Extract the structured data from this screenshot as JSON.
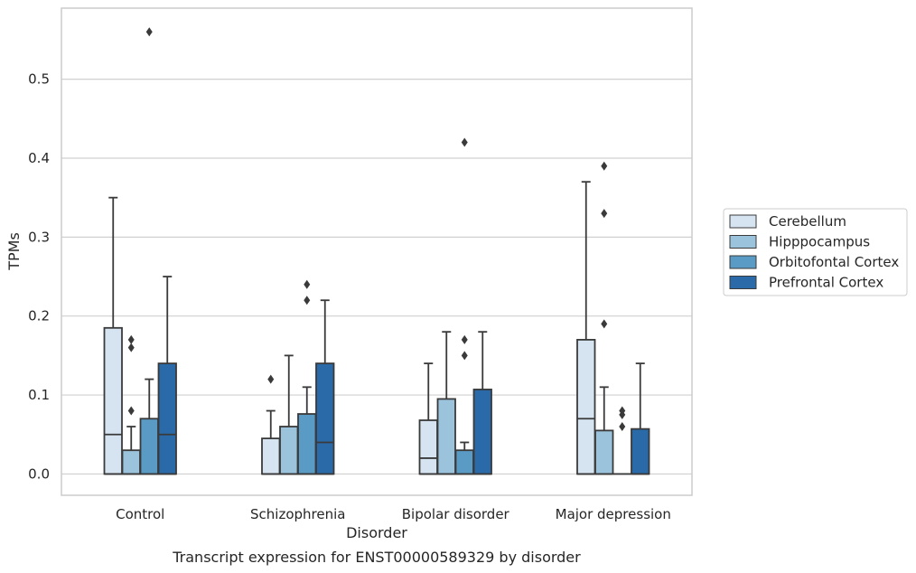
{
  "chart_data": {
    "type": "box",
    "title": "",
    "caption": "Transcript expression for ENST00000589329 by disorder",
    "xlabel": "Disorder",
    "ylabel": "TPMs",
    "ylim": [
      -0.027,
      0.59
    ],
    "yticks": [
      0.0,
      0.1,
      0.2,
      0.3,
      0.4,
      0.5
    ],
    "ytick_labels": [
      "0.0",
      "0.1",
      "0.2",
      "0.3",
      "0.4",
      "0.5"
    ],
    "grid": "horizontal",
    "legend_position": "right",
    "categories": [
      "Control",
      "Schizophrenia",
      "Bipolar disorder",
      "Major depression"
    ],
    "series": [
      {
        "name": "Cerebellum",
        "color": "#d6e4f2",
        "boxes": [
          {
            "min": 0.0,
            "q1": 0.0,
            "median": 0.05,
            "q3": 0.185,
            "max": 0.35,
            "outliers": []
          },
          {
            "min": 0.0,
            "q1": 0.0,
            "median": 0.0,
            "q3": 0.045,
            "max": 0.08,
            "outliers": [
              0.12
            ]
          },
          {
            "min": 0.0,
            "q1": 0.0,
            "median": 0.02,
            "q3": 0.068,
            "max": 0.14,
            "outliers": []
          },
          {
            "min": 0.0,
            "q1": 0.0,
            "median": 0.07,
            "q3": 0.17,
            "max": 0.37,
            "outliers": []
          }
        ]
      },
      {
        "name": "Hipppocampus",
        "color": "#9cc3dc",
        "boxes": [
          {
            "min": 0.0,
            "q1": 0.0,
            "median": 0.0,
            "q3": 0.03,
            "max": 0.06,
            "outliers": [
              0.08,
              0.16,
              0.17
            ]
          },
          {
            "min": 0.0,
            "q1": 0.0,
            "median": 0.0,
            "q3": 0.06,
            "max": 0.15,
            "outliers": []
          },
          {
            "min": 0.0,
            "q1": 0.0,
            "median": 0.0,
            "q3": 0.095,
            "max": 0.18,
            "outliers": []
          },
          {
            "min": 0.0,
            "q1": 0.0,
            "median": 0.0,
            "q3": 0.055,
            "max": 0.11,
            "outliers": [
              0.19,
              0.33,
              0.39
            ]
          }
        ]
      },
      {
        "name": "Orbitofontal Cortex",
        "color": "#5a9bc6",
        "boxes": [
          {
            "min": 0.0,
            "q1": 0.0,
            "median": 0.0,
            "q3": 0.07,
            "max": 0.12,
            "outliers": [
              0.56
            ]
          },
          {
            "min": 0.0,
            "q1": 0.0,
            "median": 0.0,
            "q3": 0.076,
            "max": 0.11,
            "outliers": [
              0.22,
              0.24
            ]
          },
          {
            "min": 0.0,
            "q1": 0.0,
            "median": 0.0,
            "q3": 0.03,
            "max": 0.04,
            "outliers": [
              0.15,
              0.17,
              0.42
            ]
          },
          {
            "min": 0.0,
            "q1": 0.0,
            "median": 0.0,
            "q3": 0.0,
            "max": 0.0,
            "outliers": [
              0.06,
              0.075,
              0.08
            ]
          }
        ]
      },
      {
        "name": "Prefrontal Cortex",
        "color": "#2b6aa8",
        "boxes": [
          {
            "min": 0.0,
            "q1": 0.0,
            "median": 0.05,
            "q3": 0.14,
            "max": 0.25,
            "outliers": []
          },
          {
            "min": 0.0,
            "q1": 0.0,
            "median": 0.04,
            "q3": 0.14,
            "max": 0.22,
            "outliers": []
          },
          {
            "min": 0.0,
            "q1": 0.0,
            "median": 0.0,
            "q3": 0.107,
            "max": 0.18,
            "outliers": []
          },
          {
            "min": 0.0,
            "q1": 0.0,
            "median": 0.0,
            "q3": 0.057,
            "max": 0.14,
            "outliers": []
          }
        ]
      }
    ]
  }
}
